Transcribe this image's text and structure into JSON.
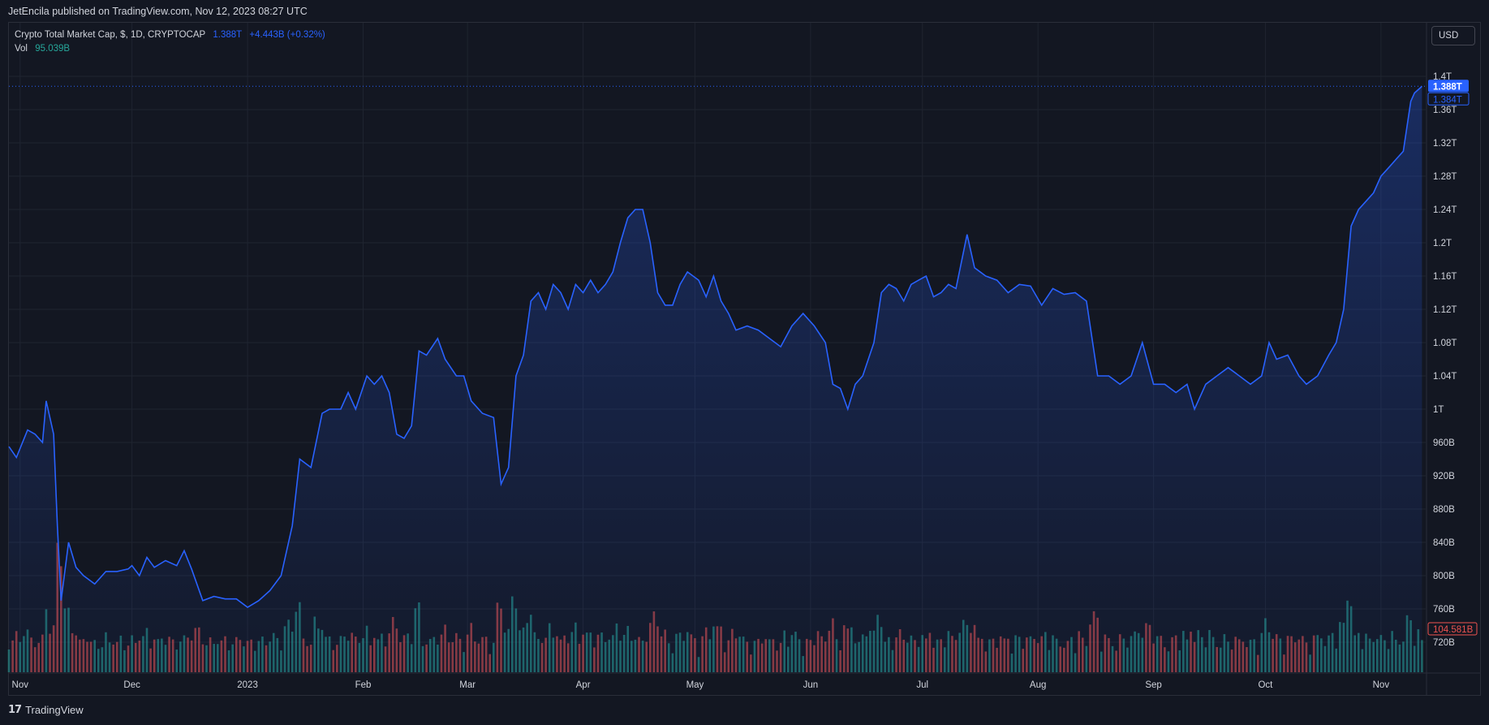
{
  "header": {
    "published": "JetEncila published on TradingView.com, Nov 12, 2023 08:27 UTC"
  },
  "legend": {
    "symbol": "Crypto Total Market Cap, $, 1D, CRYPTOCAP",
    "last": "1.388T",
    "change": "+4.443B (+0.32%)",
    "vol_label": "Vol",
    "vol_value": "95.039B"
  },
  "currency_button": "USD",
  "footer": {
    "brand": "TradingView"
  },
  "colors": {
    "line": "#2962ff",
    "up": "#26a69a",
    "down": "#ef5350",
    "grid": "#1f2430",
    "text": "#d1d4dc"
  },
  "chart_data": {
    "type": "area",
    "title": "Crypto Total Market Cap, $, 1D, CRYPTOCAP",
    "unit": "USD",
    "x_range": [
      "2022-11-01",
      "2023-11-12"
    ],
    "ylim": [
      700,
      1420
    ],
    "y_ticks": [
      {
        "v": 1400,
        "label": "1.4T"
      },
      {
        "v": 1360,
        "label": "1.36T"
      },
      {
        "v": 1320,
        "label": "1.32T"
      },
      {
        "v": 1280,
        "label": "1.28T"
      },
      {
        "v": 1240,
        "label": "1.24T"
      },
      {
        "v": 1200,
        "label": "1.2T"
      },
      {
        "v": 1160,
        "label": "1.16T"
      },
      {
        "v": 1120,
        "label": "1.12T"
      },
      {
        "v": 1080,
        "label": "1.08T"
      },
      {
        "v": 1040,
        "label": "1.04T"
      },
      {
        "v": 1000,
        "label": "1T"
      },
      {
        "v": 960,
        "label": "960B"
      },
      {
        "v": 920,
        "label": "920B"
      },
      {
        "v": 880,
        "label": "880B"
      },
      {
        "v": 840,
        "label": "840B"
      },
      {
        "v": 800,
        "label": "800B"
      },
      {
        "v": 760,
        "label": "760B"
      },
      {
        "v": 720,
        "label": "720B"
      }
    ],
    "x_ticks": [
      {
        "date": "2022-11-01",
        "label": "Nov"
      },
      {
        "date": "2022-12-01",
        "label": "Dec"
      },
      {
        "date": "2023-01-01",
        "label": "2023"
      },
      {
        "date": "2023-02-01",
        "label": "Feb"
      },
      {
        "date": "2023-03-01",
        "label": "Mar"
      },
      {
        "date": "2023-04-01",
        "label": "Apr"
      },
      {
        "date": "2023-05-01",
        "label": "May"
      },
      {
        "date": "2023-06-01",
        "label": "Jun"
      },
      {
        "date": "2023-07-01",
        "label": "Jul"
      },
      {
        "date": "2023-08-01",
        "label": "Aug"
      },
      {
        "date": "2023-09-01",
        "label": "Sep"
      },
      {
        "date": "2023-10-01",
        "label": "Oct"
      },
      {
        "date": "2023-11-01",
        "label": "Nov"
      }
    ],
    "price_labels": [
      {
        "v": 1388,
        "label": "1.388T"
      },
      {
        "v": 1384,
        "label": "1.384T"
      }
    ],
    "volume_label": "104.581B",
    "series": [
      {
        "values_unit": "billions USD",
        "points": [
          [
            "2022-10-29",
            955
          ],
          [
            "2022-10-31",
            942
          ],
          [
            "2022-11-03",
            975
          ],
          [
            "2022-11-05",
            970
          ],
          [
            "2022-11-07",
            960
          ],
          [
            "2022-11-08",
            1010
          ],
          [
            "2022-11-10",
            970
          ],
          [
            "2022-11-11",
            860
          ],
          [
            "2022-11-12",
            770
          ],
          [
            "2022-11-14",
            840
          ],
          [
            "2022-11-16",
            810
          ],
          [
            "2022-11-18",
            800
          ],
          [
            "2022-11-21",
            790
          ],
          [
            "2022-11-24",
            805
          ],
          [
            "2022-11-27",
            805
          ],
          [
            "2022-11-30",
            808
          ],
          [
            "2022-12-01",
            812
          ],
          [
            "2022-12-03",
            800
          ],
          [
            "2022-12-05",
            822
          ],
          [
            "2022-12-07",
            810
          ],
          [
            "2022-12-10",
            818
          ],
          [
            "2022-12-13",
            812
          ],
          [
            "2022-12-15",
            830
          ],
          [
            "2022-12-17",
            808
          ],
          [
            "2022-12-20",
            770
          ],
          [
            "2022-12-23",
            775
          ],
          [
            "2022-12-26",
            772
          ],
          [
            "2022-12-29",
            772
          ],
          [
            "2023-01-01",
            762
          ],
          [
            "2023-01-04",
            770
          ],
          [
            "2023-01-07",
            782
          ],
          [
            "2023-01-10",
            800
          ],
          [
            "2023-01-13",
            860
          ],
          [
            "2023-01-15",
            940
          ],
          [
            "2023-01-18",
            930
          ],
          [
            "2023-01-21",
            995
          ],
          [
            "2023-01-23",
            1000
          ],
          [
            "2023-01-26",
            1000
          ],
          [
            "2023-01-28",
            1020
          ],
          [
            "2023-01-30",
            1000
          ],
          [
            "2023-02-02",
            1040
          ],
          [
            "2023-02-04",
            1030
          ],
          [
            "2023-02-06",
            1040
          ],
          [
            "2023-02-08",
            1020
          ],
          [
            "2023-02-10",
            970
          ],
          [
            "2023-02-12",
            965
          ],
          [
            "2023-02-14",
            980
          ],
          [
            "2023-02-16",
            1070
          ],
          [
            "2023-02-18",
            1065
          ],
          [
            "2023-02-21",
            1085
          ],
          [
            "2023-02-23",
            1060
          ],
          [
            "2023-02-26",
            1040
          ],
          [
            "2023-02-28",
            1040
          ],
          [
            "2023-03-02",
            1010
          ],
          [
            "2023-03-05",
            995
          ],
          [
            "2023-03-08",
            990
          ],
          [
            "2023-03-10",
            910
          ],
          [
            "2023-03-12",
            930
          ],
          [
            "2023-03-14",
            1040
          ],
          [
            "2023-03-16",
            1065
          ],
          [
            "2023-03-18",
            1130
          ],
          [
            "2023-03-20",
            1140
          ],
          [
            "2023-03-22",
            1120
          ],
          [
            "2023-03-24",
            1150
          ],
          [
            "2023-03-26",
            1140
          ],
          [
            "2023-03-28",
            1120
          ],
          [
            "2023-03-30",
            1150
          ],
          [
            "2023-04-01",
            1140
          ],
          [
            "2023-04-03",
            1155
          ],
          [
            "2023-04-05",
            1140
          ],
          [
            "2023-04-07",
            1150
          ],
          [
            "2023-04-09",
            1165
          ],
          [
            "2023-04-11",
            1200
          ],
          [
            "2023-04-13",
            1230
          ],
          [
            "2023-04-15",
            1240
          ],
          [
            "2023-04-17",
            1240
          ],
          [
            "2023-04-19",
            1200
          ],
          [
            "2023-04-21",
            1140
          ],
          [
            "2023-04-23",
            1125
          ],
          [
            "2023-04-25",
            1125
          ],
          [
            "2023-04-27",
            1150
          ],
          [
            "2023-04-29",
            1165
          ],
          [
            "2023-05-02",
            1155
          ],
          [
            "2023-05-04",
            1135
          ],
          [
            "2023-05-06",
            1160
          ],
          [
            "2023-05-08",
            1130
          ],
          [
            "2023-05-10",
            1115
          ],
          [
            "2023-05-12",
            1095
          ],
          [
            "2023-05-15",
            1100
          ],
          [
            "2023-05-18",
            1095
          ],
          [
            "2023-05-21",
            1085
          ],
          [
            "2023-05-24",
            1075
          ],
          [
            "2023-05-27",
            1100
          ],
          [
            "2023-05-30",
            1115
          ],
          [
            "2023-06-02",
            1100
          ],
          [
            "2023-06-05",
            1080
          ],
          [
            "2023-06-07",
            1030
          ],
          [
            "2023-06-09",
            1025
          ],
          [
            "2023-06-11",
            1000
          ],
          [
            "2023-06-13",
            1030
          ],
          [
            "2023-06-15",
            1040
          ],
          [
            "2023-06-18",
            1080
          ],
          [
            "2023-06-20",
            1140
          ],
          [
            "2023-06-22",
            1150
          ],
          [
            "2023-06-24",
            1145
          ],
          [
            "2023-06-26",
            1130
          ],
          [
            "2023-06-28",
            1150
          ],
          [
            "2023-06-30",
            1155
          ],
          [
            "2023-07-02",
            1160
          ],
          [
            "2023-07-04",
            1135
          ],
          [
            "2023-07-06",
            1140
          ],
          [
            "2023-07-08",
            1150
          ],
          [
            "2023-07-10",
            1145
          ],
          [
            "2023-07-13",
            1210
          ],
          [
            "2023-07-15",
            1170
          ],
          [
            "2023-07-18",
            1160
          ],
          [
            "2023-07-21",
            1155
          ],
          [
            "2023-07-24",
            1140
          ],
          [
            "2023-07-27",
            1150
          ],
          [
            "2023-07-30",
            1148
          ],
          [
            "2023-08-02",
            1125
          ],
          [
            "2023-08-05",
            1145
          ],
          [
            "2023-08-08",
            1138
          ],
          [
            "2023-08-11",
            1140
          ],
          [
            "2023-08-14",
            1130
          ],
          [
            "2023-08-17",
            1040
          ],
          [
            "2023-08-20",
            1040
          ],
          [
            "2023-08-23",
            1030
          ],
          [
            "2023-08-26",
            1040
          ],
          [
            "2023-08-29",
            1080
          ],
          [
            "2023-09-01",
            1030
          ],
          [
            "2023-09-04",
            1030
          ],
          [
            "2023-09-07",
            1020
          ],
          [
            "2023-09-10",
            1030
          ],
          [
            "2023-09-12",
            1000
          ],
          [
            "2023-09-15",
            1030
          ],
          [
            "2023-09-18",
            1040
          ],
          [
            "2023-09-21",
            1050
          ],
          [
            "2023-09-24",
            1040
          ],
          [
            "2023-09-27",
            1030
          ],
          [
            "2023-09-30",
            1040
          ],
          [
            "2023-10-02",
            1080
          ],
          [
            "2023-10-04",
            1060
          ],
          [
            "2023-10-07",
            1065
          ],
          [
            "2023-10-10",
            1040
          ],
          [
            "2023-10-12",
            1030
          ],
          [
            "2023-10-15",
            1040
          ],
          [
            "2023-10-18",
            1065
          ],
          [
            "2023-10-20",
            1080
          ],
          [
            "2023-10-22",
            1120
          ],
          [
            "2023-10-24",
            1220
          ],
          [
            "2023-10-26",
            1240
          ],
          [
            "2023-10-28",
            1250
          ],
          [
            "2023-10-30",
            1260
          ],
          [
            "2023-11-01",
            1280
          ],
          [
            "2023-11-03",
            1290
          ],
          [
            "2023-11-05",
            1300
          ],
          [
            "2023-11-07",
            1310
          ],
          [
            "2023-11-09",
            1370
          ],
          [
            "2023-11-10",
            1380
          ],
          [
            "2023-11-12",
            1388
          ]
        ]
      }
    ]
  }
}
